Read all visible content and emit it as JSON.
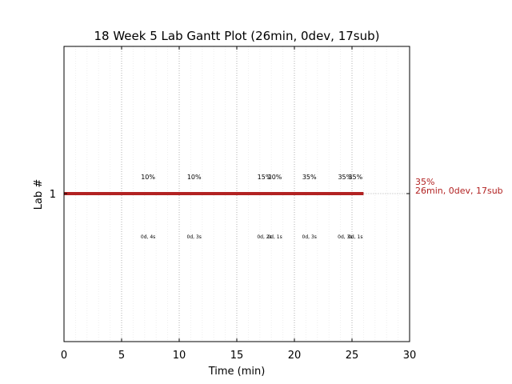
{
  "chart_data": {
    "type": "gantt",
    "title": "18 Week 5 Lab Gantt Plot (26min, 0dev, 17sub)",
    "xlabel": "Time (min)",
    "ylabel": "Lab #",
    "xlim": [
      0,
      30
    ],
    "xticks": [
      0,
      5,
      10,
      15,
      20,
      25,
      30
    ],
    "minor_grid_step": 1,
    "grid": true,
    "series": [
      {
        "lab": "1",
        "start": 0,
        "end": 26,
        "color": "#b22222",
        "right_label_line1": "35%",
        "right_label_line2": "26min, 0dev, 17sub"
      }
    ],
    "events": [
      {
        "time": 7.3,
        "pct": "10%",
        "info": "0d, 4s"
      },
      {
        "time": 11.3,
        "pct": "10%",
        "info": "0d, 3s"
      },
      {
        "time": 17.4,
        "pct": "15%",
        "info": "0d, 2s"
      },
      {
        "time": 18.3,
        "pct": "20%",
        "info": "0d, 1s"
      },
      {
        "time": 21.3,
        "pct": "35%",
        "info": "0d, 3s"
      },
      {
        "time": 24.4,
        "pct": "35%",
        "info": "0d, 3s"
      },
      {
        "time": 25.3,
        "pct": "35%",
        "info": "0d, 1s"
      }
    ]
  }
}
